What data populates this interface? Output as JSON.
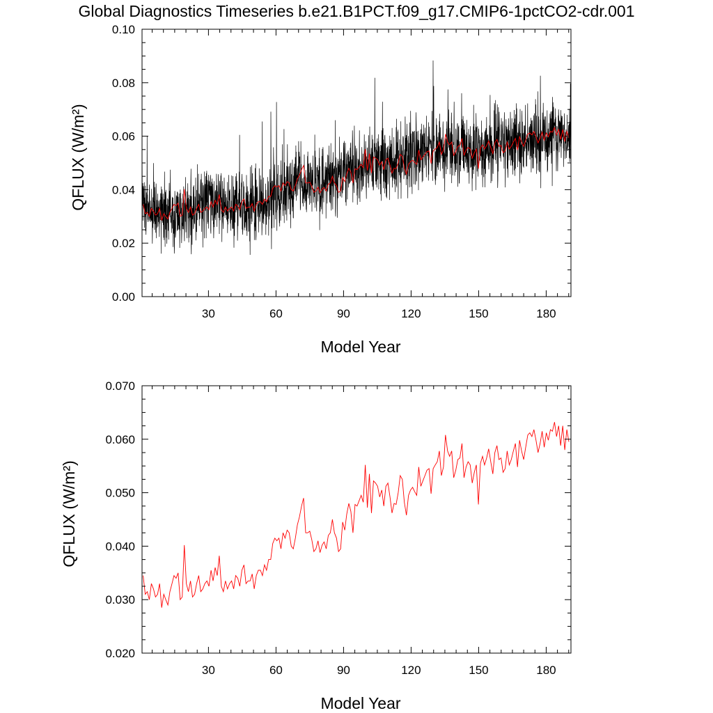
{
  "title": "Global Diagnostics Timeseries b.e21.B1PCT.f09_g17.CMIP6-1pctCO2-cdr.001",
  "colors": {
    "monthly": "#000000",
    "annual": "#ff0000",
    "axes": "#000000"
  },
  "chart_data": [
    {
      "type": "line",
      "xlabel": "Model Year",
      "ylabel": "QFLUX (W/m²)",
      "xlim": [
        0.5,
        191
      ],
      "ylim": [
        0.0,
        0.1
      ],
      "xticks": [
        30,
        60,
        90,
        120,
        150,
        180
      ],
      "xtick_labels": [
        "30",
        "60",
        "90",
        "120",
        "150",
        "180"
      ],
      "yticks": [
        0.0,
        0.02,
        0.04,
        0.06,
        0.08,
        0.1
      ],
      "ytick_labels": [
        "0.00",
        "0.02",
        "0.04",
        "0.06",
        "0.08",
        "0.10"
      ],
      "series": [
        {
          "kind": "monthly",
          "color": "#000000",
          "x_start": 0.5,
          "x_step": 0.0833,
          "trend_year": [
            1,
            10,
            20,
            30,
            40,
            50,
            60,
            70,
            80,
            90,
            100,
            110,
            120,
            130,
            140,
            150,
            160,
            170,
            180,
            190
          ],
          "trend_value": [
            0.034,
            0.031,
            0.033,
            0.034,
            0.034,
            0.034,
            0.038,
            0.043,
            0.041,
            0.048,
            0.049,
            0.051,
            0.053,
            0.056,
            0.054,
            0.055,
            0.057,
            0.058,
            0.06,
            0.06
          ],
          "spread": 0.012
        },
        {
          "kind": "annual",
          "color": "#ff0000",
          "x_start": 1,
          "x_step": 1,
          "values_ref": "annual"
        }
      ]
    },
    {
      "type": "line",
      "xlabel": "Model Year",
      "ylabel": "QFLUX (W/m²)",
      "xlim": [
        0.5,
        191
      ],
      "ylim": [
        0.02,
        0.07
      ],
      "xticks": [
        30,
        60,
        90,
        120,
        150,
        180
      ],
      "xtick_labels": [
        "30",
        "60",
        "90",
        "120",
        "150",
        "180"
      ],
      "yticks": [
        0.02,
        0.03,
        0.04,
        0.05,
        0.06,
        0.07
      ],
      "ytick_labels": [
        "0.020",
        "0.030",
        "0.040",
        "0.050",
        "0.060",
        "0.070"
      ],
      "series": [
        {
          "kind": "annual",
          "color": "#ff0000",
          "x_start": 1,
          "x_step": 1,
          "values_ref": "annual"
        }
      ]
    }
  ],
  "annual": [
    0.0345,
    0.031,
    0.0315,
    0.03,
    0.033,
    0.032,
    0.0305,
    0.031,
    0.033,
    0.0285,
    0.031,
    0.03,
    0.029,
    0.0315,
    0.033,
    0.0345,
    0.034,
    0.035,
    0.03,
    0.0305,
    0.0402,
    0.033,
    0.0315,
    0.0335,
    0.0305,
    0.031,
    0.033,
    0.0345,
    0.0315,
    0.032,
    0.033,
    0.0335,
    0.0325,
    0.0355,
    0.0335,
    0.036,
    0.0345,
    0.0382,
    0.0325,
    0.0315,
    0.0335,
    0.032,
    0.033,
    0.0335,
    0.032,
    0.0345,
    0.034,
    0.0325,
    0.0355,
    0.0365,
    0.033,
    0.0335,
    0.0335,
    0.0348,
    0.032,
    0.0345,
    0.0355,
    0.0355,
    0.0345,
    0.0365,
    0.0355,
    0.0375,
    0.0375,
    0.0405,
    0.0415,
    0.041,
    0.0415,
    0.0395,
    0.0425,
    0.0415,
    0.043,
    0.0425,
    0.04,
    0.0395,
    0.0415,
    0.044,
    0.0455,
    0.0475,
    0.049,
    0.0425,
    0.0425,
    0.0428,
    0.0412,
    0.039,
    0.0395,
    0.041,
    0.0388,
    0.0402,
    0.0408,
    0.0395,
    0.042,
    0.0425,
    0.045,
    0.0425,
    0.0415,
    0.039,
    0.0395,
    0.0445,
    0.043,
    0.046,
    0.048,
    0.0465,
    0.0425,
    0.0478,
    0.0475,
    0.0485,
    0.0495,
    0.0482,
    0.0552,
    0.0472,
    0.0535,
    0.0462,
    0.0522,
    0.0518,
    0.0512,
    0.0492,
    0.0505,
    0.0475,
    0.0512,
    0.0518,
    0.0492,
    0.0462,
    0.048,
    0.0478,
    0.05,
    0.0532,
    0.0525,
    0.0482,
    0.0458,
    0.0495,
    0.0505,
    0.051,
    0.0502,
    0.0495,
    0.0548,
    0.0512,
    0.0522,
    0.0532,
    0.0542,
    0.0545,
    0.0498,
    0.0545,
    0.0552,
    0.0558,
    0.0578,
    0.0532,
    0.0548,
    0.0608,
    0.0578,
    0.0568,
    0.0578,
    0.0528,
    0.0542,
    0.0562,
    0.0565,
    0.0592,
    0.0528,
    0.0548,
    0.0558,
    0.0552,
    0.0518,
    0.0538,
    0.0552,
    0.0478,
    0.0555,
    0.0568,
    0.0552,
    0.0565,
    0.0582,
    0.0558,
    0.0535,
    0.0575,
    0.0588,
    0.0562,
    0.0565,
    0.0538,
    0.0545,
    0.0578,
    0.0552,
    0.0562,
    0.0578,
    0.0592,
    0.0548,
    0.0598,
    0.0578,
    0.0562,
    0.0585,
    0.0608,
    0.0612,
    0.0605,
    0.0618,
    0.0598,
    0.0575,
    0.0592,
    0.0615,
    0.0585,
    0.0612,
    0.0598,
    0.0618,
    0.0615,
    0.0632,
    0.0605,
    0.0625,
    0.0588,
    0.0625,
    0.058,
    0.0618,
    0.0595
  ]
}
